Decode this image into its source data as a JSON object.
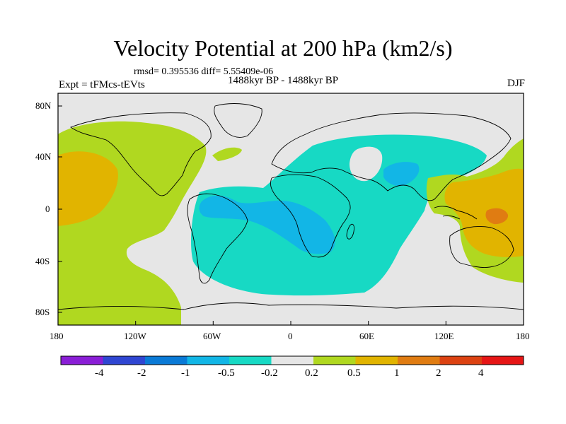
{
  "figure": {
    "title": "Velocity Potential at 200 hPa (km2/s)",
    "stats_text": "rmsd= 0.395536 diff= 5.55409e-06",
    "experiment_text": "Expt = tFMcs-tEVts",
    "period_text": "1488kyr BP - 1488kyr BP",
    "season_text": "DJF"
  },
  "axes": {
    "lon_ticks": [
      "180",
      "120W",
      "60W",
      "0",
      "60E",
      "120E",
      "180"
    ],
    "lat_ticks": [
      "80N",
      "40N",
      "0",
      "40S",
      "80S"
    ]
  },
  "colorbar": {
    "labels": [
      "-4",
      "-2",
      "-1",
      "-0.5",
      "-0.2",
      "0.2",
      "0.5",
      "1",
      "2",
      "4"
    ],
    "colors": [
      "#8a1ed6",
      "#2f46d2",
      "#0a7ad6",
      "#12b6e6",
      "#17d9c4",
      "#e6e6e6",
      "#b0d820",
      "#e1b400",
      "#e07c12",
      "#dc4212",
      "#e61616"
    ]
  },
  "map": {
    "land_color": "#000000",
    "background_color": "#e6e6e6"
  }
}
